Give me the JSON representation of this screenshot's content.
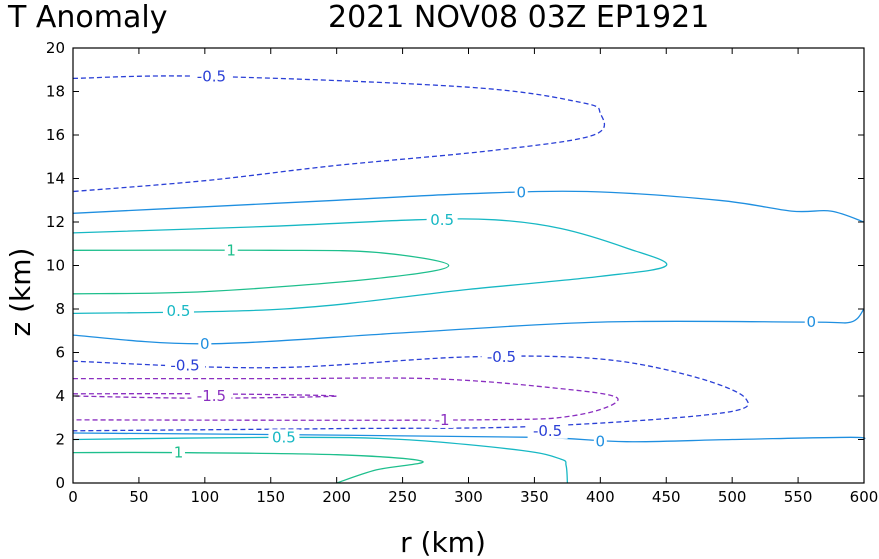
{
  "chart_data": {
    "type": "contour",
    "title_left": "T Anomaly",
    "title_right": "2021 NOV08 03Z EP1921",
    "xlabel": "r (km)",
    "ylabel": "z (km)",
    "xlim": [
      0,
      600
    ],
    "ylim": [
      0,
      20
    ],
    "xticks": [
      "0",
      "50",
      "100",
      "150",
      "200",
      "250",
      "300",
      "350",
      "400",
      "450",
      "500",
      "550",
      "600"
    ],
    "yticks": [
      "0",
      "2",
      "4",
      "6",
      "8",
      "10",
      "12",
      "14",
      "16",
      "18",
      "20"
    ],
    "grid": false,
    "contours": [
      {
        "level": "-0.5",
        "color": "#2a3fd6",
        "dashed": true,
        "labels": [
          {
            "text": "-0.5",
            "x": 105,
            "y": 18.7
          }
        ],
        "points": [
          [
            0,
            18.6
          ],
          [
            100,
            18.7
          ],
          [
            300,
            18.2
          ],
          [
            385,
            17.5
          ],
          [
            400,
            17.0
          ],
          [
            395,
            16.0
          ],
          [
            320,
            15.3
          ],
          [
            200,
            14.6
          ],
          [
            100,
            13.9
          ],
          [
            0,
            13.4
          ]
        ]
      },
      {
        "level": "0",
        "color": "#1f8fe0",
        "dashed": false,
        "labels": [
          {
            "text": "0",
            "x": 340,
            "y": 13.35
          }
        ],
        "points": [
          [
            0,
            12.4
          ],
          [
            100,
            12.7
          ],
          [
            200,
            13.0
          ],
          [
            300,
            13.3
          ],
          [
            390,
            13.4
          ],
          [
            490,
            13.0
          ],
          [
            545,
            12.5
          ],
          [
            575,
            12.5
          ],
          [
            600,
            12.0
          ]
        ]
      },
      {
        "level": "0.5",
        "color": "#17b8c4",
        "dashed": false,
        "labels": [
          {
            "text": "0.5",
            "x": 280,
            "y": 12.1
          }
        ],
        "points": [
          [
            0,
            11.5
          ],
          [
            150,
            11.8
          ],
          [
            260,
            12.1
          ],
          [
            320,
            12.1
          ],
          [
            370,
            11.7
          ],
          [
            420,
            10.8
          ],
          [
            450,
            10.0
          ],
          [
            400,
            9.5
          ],
          [
            300,
            8.9
          ],
          [
            160,
            8.0
          ],
          [
            0,
            7.8
          ]
        ]
      },
      {
        "level": "0.5b",
        "color": "#17b8c4",
        "dashed": false,
        "labels": [
          {
            "text": "0.5",
            "x": 80,
            "y": 7.9
          }
        ],
        "points": []
      },
      {
        "level": "1",
        "color": "#1ebf8d",
        "dashed": false,
        "labels": [
          {
            "text": "1",
            "x": 120,
            "y": 10.7
          }
        ],
        "points": [
          [
            0,
            10.7
          ],
          [
            150,
            10.7
          ],
          [
            230,
            10.6
          ],
          [
            285,
            10.0
          ],
          [
            230,
            9.4
          ],
          [
            100,
            8.8
          ],
          [
            0,
            8.7
          ]
        ]
      },
      {
        "level": "0c",
        "color": "#1f8fe0",
        "dashed": false,
        "labels": [
          {
            "text": "0",
            "x": 100,
            "y": 6.4
          },
          {
            "text": "0",
            "x": 560,
            "y": 7.4
          }
        ],
        "points": [
          [
            0,
            6.8
          ],
          [
            100,
            6.4
          ],
          [
            250,
            6.9
          ],
          [
            400,
            7.4
          ],
          [
            560,
            7.4
          ],
          [
            590,
            7.4
          ],
          [
            600,
            8.0
          ]
        ]
      },
      {
        "level": "-0.5c",
        "color": "#2a3fd6",
        "dashed": true,
        "labels": [
          {
            "text": "-0.5",
            "x": 85,
            "y": 5.4
          },
          {
            "text": "-0.5",
            "x": 325,
            "y": 5.8
          }
        ],
        "points": [
          [
            0,
            5.6
          ],
          [
            150,
            5.3
          ],
          [
            300,
            5.8
          ],
          [
            400,
            5.7
          ],
          [
            470,
            4.9
          ],
          [
            510,
            3.9
          ],
          [
            490,
            3.2
          ],
          [
            350,
            2.6
          ],
          [
            200,
            2.5
          ],
          [
            0,
            2.4
          ]
        ]
      },
      {
        "level": "-1",
        "color": "#8a2fc0",
        "dashed": true,
        "labels": [
          {
            "text": "-1",
            "x": 280,
            "y": 2.9
          }
        ],
        "points": [
          [
            0,
            4.8
          ],
          [
            150,
            4.8
          ],
          [
            270,
            4.8
          ],
          [
            360,
            4.4
          ],
          [
            413,
            3.9
          ],
          [
            380,
            3.1
          ],
          [
            300,
            2.9
          ],
          [
            0,
            2.9
          ]
        ]
      },
      {
        "level": "-1.5",
        "color": "#8a2fc0",
        "dashed": true,
        "labels": [
          {
            "text": "-1.5",
            "x": 105,
            "y": 4.0
          }
        ],
        "points": [
          [
            0,
            4.1
          ],
          [
            100,
            4.1
          ],
          [
            200,
            4.0
          ],
          [
            100,
            3.9
          ],
          [
            0,
            4.0
          ]
        ]
      },
      {
        "level": "-0.5d",
        "color": "#2a3fd6",
        "dashed": true,
        "labels": [
          {
            "text": "-0.5",
            "x": 360,
            "y": 2.4
          }
        ],
        "points": []
      },
      {
        "level": "0d",
        "color": "#1f8fe0",
        "dashed": false,
        "labels": [
          {
            "text": "0",
            "x": 400,
            "y": 1.9
          }
        ],
        "points": [
          [
            0,
            2.3
          ],
          [
            200,
            2.2
          ],
          [
            350,
            2.1
          ],
          [
            420,
            1.9
          ],
          [
            500,
            2.0
          ],
          [
            590,
            2.1
          ],
          [
            600,
            2.0
          ]
        ]
      },
      {
        "level": "0.5d",
        "color": "#17b8c4",
        "dashed": false,
        "labels": [
          {
            "text": "0.5",
            "x": 160,
            "y": 2.1
          }
        ],
        "points": [
          [
            0,
            2.0
          ],
          [
            160,
            2.1
          ],
          [
            250,
            2.0
          ],
          [
            340,
            1.5
          ],
          [
            370,
            1.1
          ],
          [
            374,
            0.8
          ],
          [
            375,
            0
          ]
        ]
      },
      {
        "level": "1d",
        "color": "#1ebf8d",
        "dashed": false,
        "labels": [
          {
            "text": "1",
            "x": 80,
            "y": 1.4
          }
        ],
        "points": [
          [
            0,
            1.4
          ],
          [
            80,
            1.4
          ],
          [
            200,
            1.3
          ],
          [
            265,
            1.0
          ],
          [
            230,
            0.6
          ],
          [
            200,
            0
          ]
        ]
      }
    ]
  }
}
